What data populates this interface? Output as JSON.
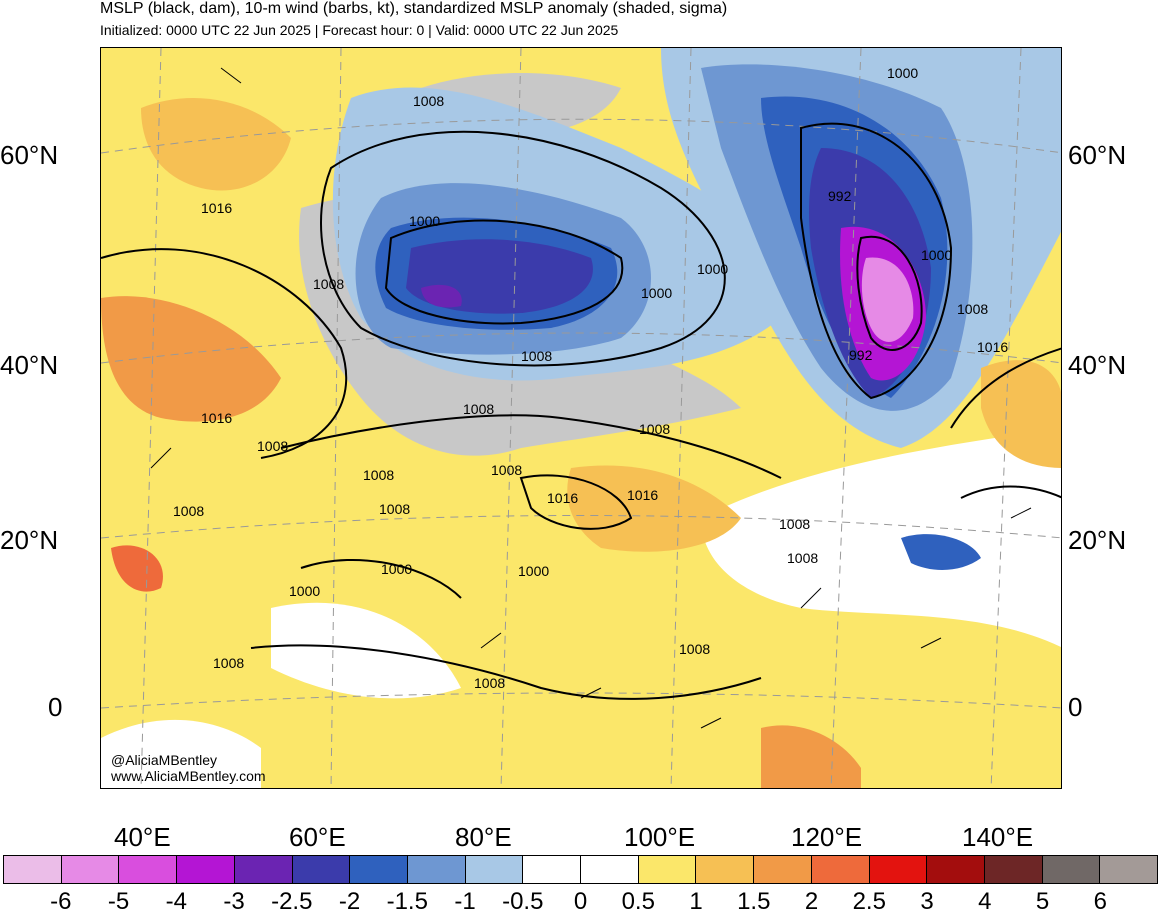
{
  "title": "MSLP (black, dam), 10-m wind (barbs, kt), standardized MSLP anomaly (shaded, sigma)",
  "subtitle": "Initialized: 0000 UTC 22 Jun 2025 | Forecast hour: 0 | Valid: 0000 UTC 22 Jun 2025",
  "lat_labels": [
    "60°N",
    "40°N",
    "20°N",
    "0"
  ],
  "lon_labels": [
    "40°E",
    "60°E",
    "80°E",
    "100°E",
    "120°E",
    "140°E"
  ],
  "contour_labels": [
    "1000",
    "1008",
    "1000",
    "1016",
    "1008",
    "1000",
    "1000",
    "992",
    "1000",
    "1008",
    "992",
    "1016",
    "1008",
    "1008",
    "1016",
    "1008",
    "1008",
    "1008",
    "1008",
    "1016",
    "1008",
    "1016",
    "1008",
    "1008",
    "1000",
    "1000",
    "1008",
    "1000",
    "1008",
    "1008",
    "1008"
  ],
  "colorbar": {
    "colors": [
      "#ebbde8",
      "#e68ae6",
      "#d94ede",
      "#b415d4",
      "#6b24b2",
      "#3b3bab",
      "#2f61be",
      "#6e97d2",
      "#a8c8e6",
      "#ffffff",
      "#ffffff",
      "#fbe76a",
      "#f6c054",
      "#f19a47",
      "#ee6a3b",
      "#e3130f",
      "#a30d0d",
      "#6d2626",
      "#706866",
      "#a39a97"
    ],
    "labels": [
      "-6",
      "-5",
      "-4",
      "-3",
      "-2.5",
      "-2",
      "-1.5",
      "-1",
      "-0.5",
      "0",
      "0.5",
      "1",
      "1.5",
      "2",
      "2.5",
      "3",
      "4",
      "5",
      "6"
    ]
  },
  "watermark": {
    "handle": "@AliciaMBentley",
    "url": "www.AliciaMBentley.com"
  }
}
